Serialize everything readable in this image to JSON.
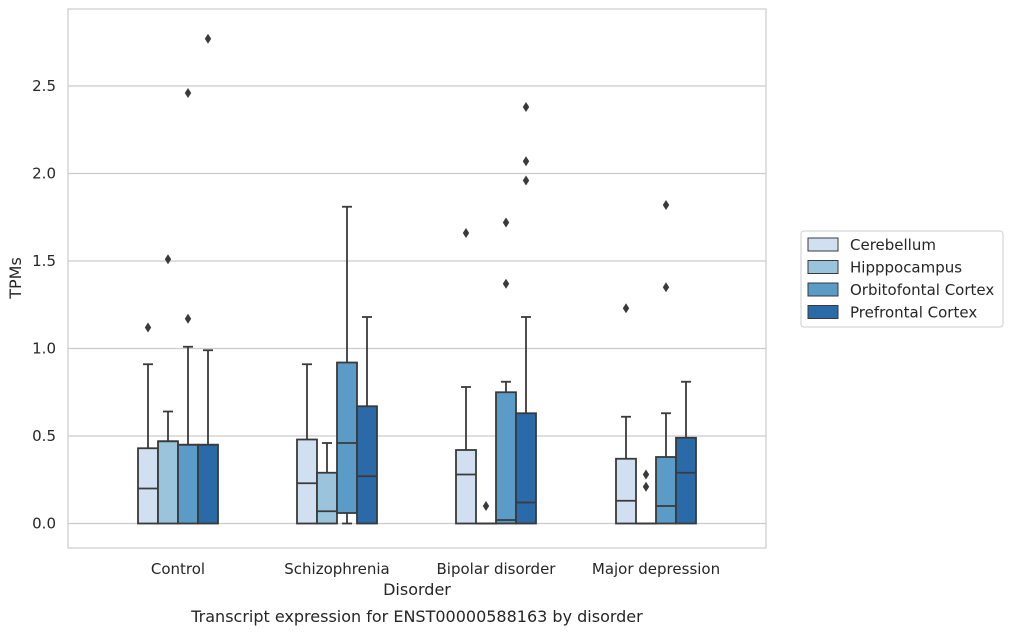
{
  "chart_data": {
    "type": "box",
    "xlabel": "Disorder",
    "ylabel": "TPMs",
    "caption": "Transcript expression for ENST00000588163 by disorder",
    "categories": [
      "Control",
      "Schizophrenia",
      "Bipolar disorder",
      "Major depression"
    ],
    "y_ticks": [
      "0.0",
      "0.5",
      "1.0",
      "1.5",
      "2.0",
      "2.5"
    ],
    "ylim": [
      -0.14,
      2.94
    ],
    "grid": "horizontal",
    "legend_position": "right",
    "legend_title": "",
    "series": [
      {
        "name": "Cerebellum",
        "color": "#d1e0f0",
        "boxes": [
          {
            "q1": 0.0,
            "median": 0.2,
            "q3": 0.43,
            "whislo": 0.0,
            "whishi": 0.91,
            "fliers": [
              1.12
            ]
          },
          {
            "q1": 0.0,
            "median": 0.23,
            "q3": 0.48,
            "whislo": 0.0,
            "whishi": 0.91,
            "fliers": []
          },
          {
            "q1": 0.0,
            "median": 0.28,
            "q3": 0.42,
            "whislo": 0.0,
            "whishi": 0.78,
            "fliers": [
              1.66
            ]
          },
          {
            "q1": 0.0,
            "median": 0.13,
            "q3": 0.37,
            "whislo": 0.0,
            "whishi": 0.61,
            "fliers": [
              1.23
            ]
          }
        ]
      },
      {
        "name": "Hipppocampus",
        "color": "#9ac3dc",
        "boxes": [
          {
            "q1": 0.0,
            "median": 0.47,
            "q3": 0.47,
            "whislo": 0.0,
            "whishi": 0.64,
            "fliers": [
              1.51
            ]
          },
          {
            "q1": 0.0,
            "median": 0.07,
            "q3": 0.29,
            "whislo": 0.0,
            "whishi": 0.46,
            "fliers": []
          },
          {
            "q1": 0.0,
            "median": 0.0,
            "q3": 0.0,
            "whislo": 0.0,
            "whishi": 0.0,
            "fliers": [
              0.1
            ]
          },
          {
            "q1": 0.0,
            "median": 0.0,
            "q3": 0.0,
            "whislo": 0.0,
            "whishi": 0.0,
            "fliers": [
              0.21,
              0.28
            ]
          }
        ]
      },
      {
        "name": "Orbitofontal Cortex",
        "color": "#5a9bc7",
        "boxes": [
          {
            "q1": 0.0,
            "median": 0.45,
            "q3": 0.45,
            "whislo": 0.0,
            "whishi": 1.01,
            "fliers": [
              1.17,
              2.46
            ]
          },
          {
            "q1": 0.06,
            "median": 0.46,
            "q3": 0.92,
            "whislo": 0.0,
            "whishi": 1.81,
            "fliers": []
          },
          {
            "q1": 0.0,
            "median": 0.02,
            "q3": 0.75,
            "whislo": 0.0,
            "whishi": 0.81,
            "fliers": [
              1.37,
              1.72
            ]
          },
          {
            "q1": 0.0,
            "median": 0.1,
            "q3": 0.38,
            "whislo": 0.0,
            "whishi": 0.63,
            "fliers": [
              1.35,
              1.82
            ]
          }
        ]
      },
      {
        "name": "Prefrontal Cortex",
        "color": "#2a6aa8",
        "boxes": [
          {
            "q1": 0.0,
            "median": 0.45,
            "q3": 0.45,
            "whislo": 0.0,
            "whishi": 0.99,
            "fliers": [
              2.77
            ]
          },
          {
            "q1": 0.0,
            "median": 0.27,
            "q3": 0.67,
            "whislo": 0.0,
            "whishi": 1.18,
            "fliers": []
          },
          {
            "q1": 0.0,
            "median": 0.12,
            "q3": 0.63,
            "whislo": 0.0,
            "whishi": 1.18,
            "fliers": [
              1.96,
              2.07,
              2.38
            ]
          },
          {
            "q1": 0.0,
            "median": 0.29,
            "q3": 0.49,
            "whislo": 0.0,
            "whishi": 0.81,
            "fliers": []
          }
        ]
      }
    ]
  }
}
